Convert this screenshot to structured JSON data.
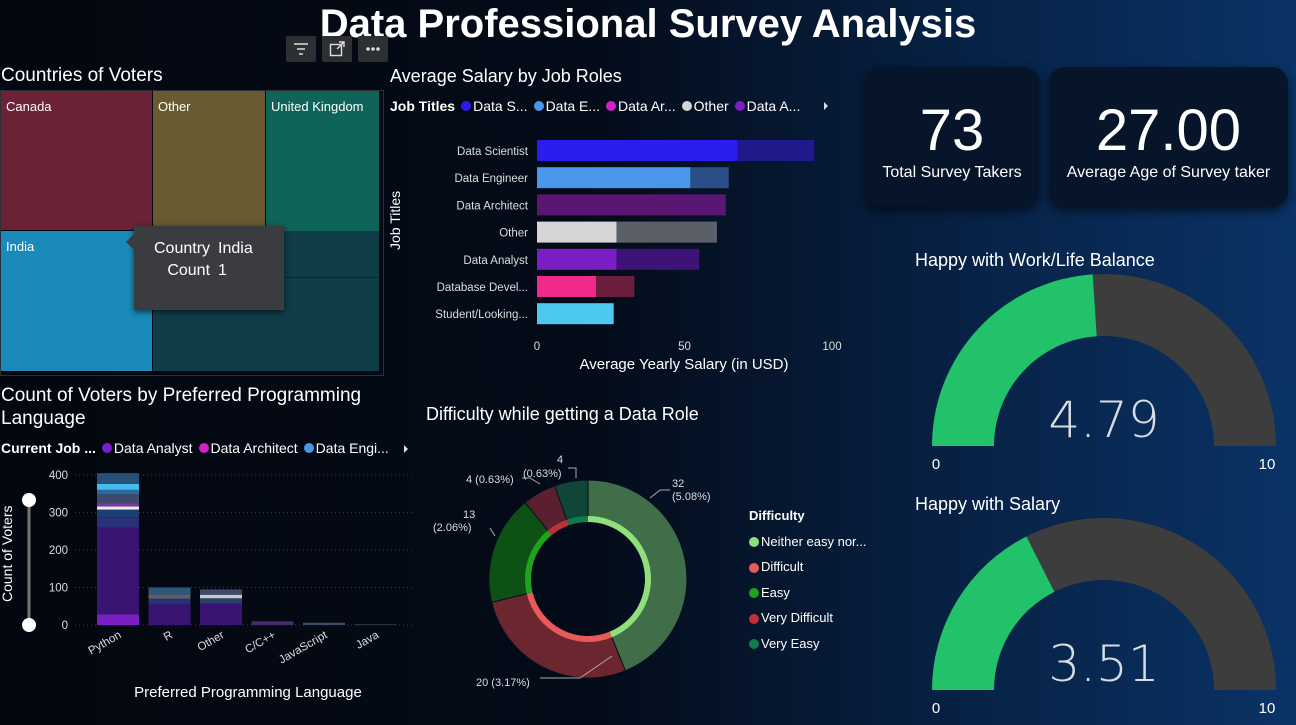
{
  "page": {
    "title": "Data Professional Survey Analysis"
  },
  "toolbar": {
    "filter_icon": "filter-icon",
    "focus_icon": "focus-mode-icon",
    "more_icon": "more-options-icon"
  },
  "treemap": {
    "title": "Countries of Voters",
    "tiles": [
      {
        "label": "Canada",
        "color": "#6b2237"
      },
      {
        "label": "Other",
        "color": "#6a5a32"
      },
      {
        "label": "United Kingdom",
        "color": "#0e6459"
      },
      {
        "label": "India",
        "color": "#1a8bb9"
      },
      {
        "label": "",
        "color": "#0f3d48"
      }
    ],
    "tooltip": {
      "k1": "Country",
      "v1": "India",
      "k2": "Count",
      "v2": "1"
    }
  },
  "salary_chart": {
    "title": "Average Salary by Job Roles",
    "legend_title": "Job Titles",
    "legend": [
      {
        "label": "Data S...",
        "color": "#2b1cf0"
      },
      {
        "label": "Data E...",
        "color": "#4a97e9"
      },
      {
        "label": "Data Ar...",
        "color": "#d321c9"
      },
      {
        "label": "Other",
        "color": "#d5d5d5"
      },
      {
        "label": "Data A...",
        "color": "#7b1fc4"
      }
    ],
    "ylabel": "Job Titles",
    "xlabel": "Average Yearly Salary (in USD)",
    "xticks": [
      "0",
      "50",
      "100"
    ]
  },
  "chart_data": [
    {
      "type": "bar",
      "orientation": "horizontal",
      "stacked": true,
      "categories": [
        "Data Scientist",
        "Data Engineer",
        "Data Architect",
        "Other",
        "Data Analyst",
        "Database Devel...",
        "Student/Looking..."
      ],
      "series": [
        {
          "values": [
            68,
            52,
            0,
            27,
            27,
            20,
            26
          ]
        },
        {
          "values": [
            26,
            13,
            64,
            34,
            28,
            13,
            0
          ]
        }
      ],
      "colors_front": [
        "#2b1cf0",
        "#4a97e9",
        "#5a1673",
        "#d5d5d5",
        "#7b1fc4",
        "#f02a8a",
        "#4dc9f0"
      ],
      "colors_back": [
        "#1e1a8c",
        "#2a4f86",
        "#5a1673",
        "#5a5f68",
        "#3e1377",
        "#6b1f3c",
        "#4dc9f0"
      ],
      "xlim": [
        0,
        100
      ],
      "xlabel": "Average Yearly Salary (in USD)",
      "ylabel": "Job Titles"
    },
    {
      "type": "bar",
      "stacked": true,
      "categories": [
        "Python",
        "R",
        "Other",
        "C/C++",
        "JavaScript",
        "Java"
      ],
      "values": [
        405,
        100,
        95,
        10,
        6,
        2
      ],
      "ylim": [
        0,
        400
      ],
      "yticks": [
        0,
        100,
        200,
        300,
        400
      ],
      "xlabel": "Preferred Programming Language",
      "ylabel": "Count of Voters"
    },
    {
      "type": "pie",
      "donut": true,
      "slices": [
        {
          "label": "Neither easy nor difficult",
          "value": 32,
          "text": "32 (5.08%)",
          "color": "#3f6e49"
        },
        {
          "label": "Difficult",
          "value": 20,
          "text": "20 (3.17%)",
          "color": "#6b2630"
        },
        {
          "label": "Easy",
          "value": 13,
          "text": "13 (2.06%)",
          "color": "#0d5214"
        },
        {
          "label": "Very Difficult",
          "value": 4,
          "text": "4 (0.63%)",
          "color": "#5a2030"
        },
        {
          "label": "Very Easy",
          "value": 4,
          "text": "4 (0.63%)",
          "color": "#0f4638"
        }
      ]
    }
  ],
  "lang_chart": {
    "title_line1": "Count of Voters by Preferred Programming",
    "title_line2": "Language",
    "legend_title": "Current Job ...",
    "legend": [
      {
        "label": "Data Analyst",
        "color": "#7b1fc4"
      },
      {
        "label": "Data Architect",
        "color": "#d321c9"
      },
      {
        "label": "Data Engi...",
        "color": "#4a97e9"
      }
    ],
    "ylabel": "Count of Voters",
    "xlabel": "Preferred Programming Language",
    "yticks": [
      "400",
      "300",
      "200",
      "100",
      "0"
    ],
    "xticks": [
      "Python",
      "R",
      "Other",
      "C/C++",
      "JavaScript",
      "Java"
    ]
  },
  "donut_chart": {
    "title": "Difficulty while getting a Data Role",
    "legend_title": "Difficulty",
    "legend": [
      {
        "label": "Neither easy nor...",
        "color": "#8fe07a"
      },
      {
        "label": "Difficult",
        "color": "#e85a5a"
      },
      {
        "label": "Easy",
        "color": "#1fa31f"
      },
      {
        "label": "Very Difficult",
        "color": "#c0303a"
      },
      {
        "label": "Very Easy",
        "color": "#127a4a"
      }
    ],
    "labels": {
      "a_line1": "32",
      "a_line2": "(5.08%)",
      "b": "20 (3.17%)",
      "c_line1": "13",
      "c_line2": "(2.06%)",
      "d": "4 (0.63%)",
      "e_line1": "4",
      "e_line2": "(0.63%)"
    }
  },
  "kpis": {
    "survey_takers": {
      "value": "73",
      "label": "Total Survey Takers"
    },
    "avg_age": {
      "value": "27.00",
      "label": "Average Age of Survey taker"
    }
  },
  "gauges": {
    "worklife": {
      "title": "Happy with Work/Life Balance",
      "value": 4.79,
      "value_text": "4.79",
      "min": "0",
      "max": "10",
      "color": "#22c26a",
      "track": "#3d3d3d"
    },
    "salary": {
      "title": "Happy with Salary",
      "value": 3.51,
      "value_text": "3.51",
      "min": "0",
      "max": "10",
      "color": "#22c26a",
      "track": "#3d3d3d"
    }
  }
}
